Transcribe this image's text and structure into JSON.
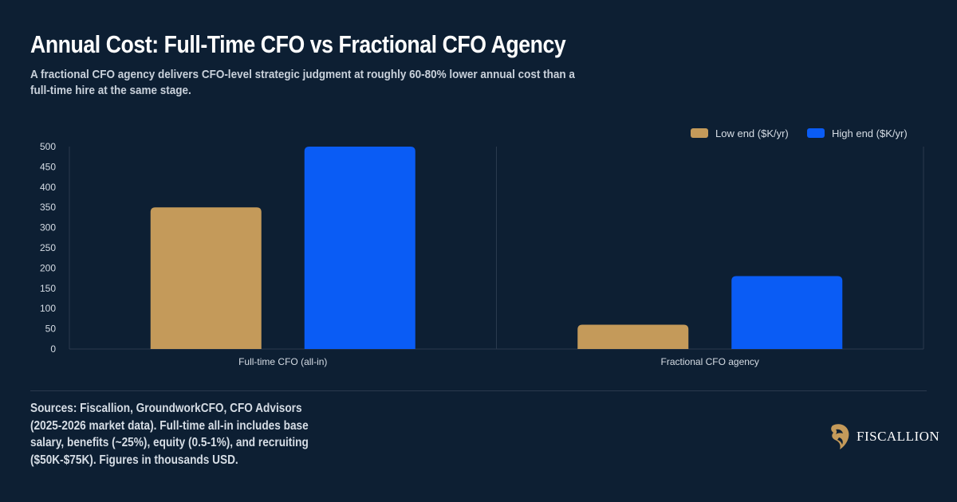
{
  "title": "Annual Cost: Full-Time CFO vs Fractional CFO Agency",
  "subtitle": "A fractional CFO agency delivers CFO-level strategic judgment at roughly 60-80% lower annual cost than a full-time hire at the same stage.",
  "sources": "Sources: Fiscallion, GroundworkCFO, CFO Advisors (2025-2026 market data). Full-time all-in includes base salary, benefits (~25%), equity (0.5-1%), and recruiting ($50K-$75K). Figures in thousands USD.",
  "brand": {
    "name": "FISCALLION",
    "icon": "lion-head-logo-icon",
    "gold": "#c49a5a"
  },
  "colors": {
    "background": "#0d1f33",
    "low": "#c49a5a",
    "high": "#0a5cf5",
    "grid": "#2a3a4e",
    "tick": "#d6dde5"
  },
  "chart_data": {
    "type": "bar",
    "categories": [
      "Full-time CFO (all-in)",
      "Fractional CFO agency"
    ],
    "series": [
      {
        "name": "Low end ($K/yr)",
        "values": [
          350,
          60
        ]
      },
      {
        "name": "High end ($K/yr)",
        "values": [
          500,
          180
        ]
      }
    ],
    "ylim": [
      0,
      500
    ],
    "yticks": [
      0,
      50,
      100,
      150,
      200,
      250,
      300,
      350,
      400,
      450,
      500
    ],
    "legend_position": "top-right",
    "grid": "vertical-category-separators"
  }
}
